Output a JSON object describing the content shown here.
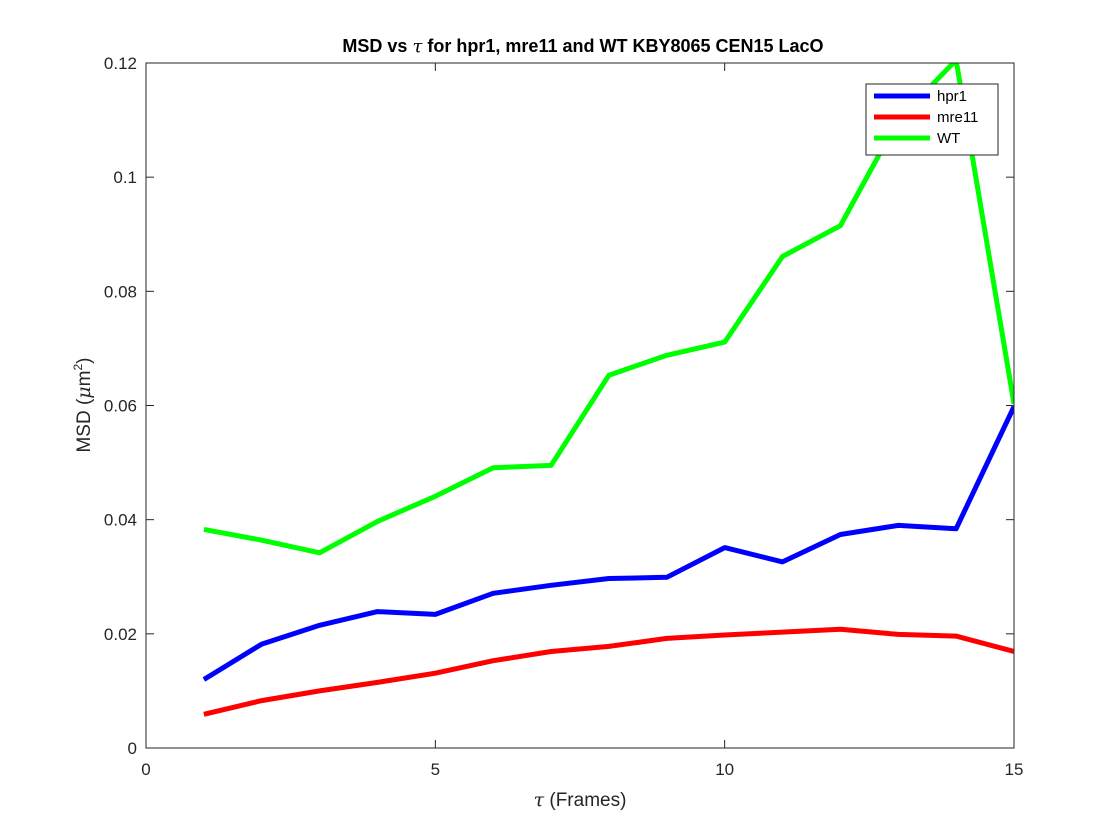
{
  "chart_data": {
    "type": "line",
    "title_parts": {
      "before": "MSD vs ",
      "symbol": "τ",
      "after": " for hpr1, mre11 and WT KBY8065 CEN15 LacO"
    },
    "xlabel_parts": {
      "symbol": "τ",
      "after": " (Frames)"
    },
    "ylabel_parts": {
      "before": "MSD (",
      "symbol": "μ",
      "unit": "m",
      "sup": "2",
      "after": ")"
    },
    "xlim": [
      0,
      15
    ],
    "ylim": [
      0,
      0.12
    ],
    "xticks": [
      0,
      5,
      10,
      15
    ],
    "xtick_labels": [
      "0",
      "5",
      "10",
      "15"
    ],
    "yticks": [
      0,
      0.02,
      0.04,
      0.06,
      0.08,
      0.1,
      0.12
    ],
    "ytick_labels": [
      "0",
      "0.02",
      "0.04",
      "0.06",
      "0.08",
      "0.1",
      "0.12"
    ],
    "grid": false,
    "legend_position": "top-right",
    "x": [
      1,
      2,
      3,
      4,
      5,
      6,
      7,
      8,
      9,
      10,
      11,
      12,
      13,
      14,
      15
    ],
    "series": [
      {
        "name": "hpr1",
        "color": "#0000ff",
        "values": [
          0.012,
          0.0182,
          0.0215,
          0.0239,
          0.0234,
          0.0271,
          0.0285,
          0.0297,
          0.0299,
          0.0351,
          0.0326,
          0.0374,
          0.039,
          0.0384,
          0.0598
        ]
      },
      {
        "name": "mre11",
        "color": "#ff0000",
        "values": [
          0.0059,
          0.0083,
          0.01,
          0.0115,
          0.0131,
          0.0153,
          0.0169,
          0.0178,
          0.0192,
          0.0198,
          0.0203,
          0.0208,
          0.0199,
          0.0196,
          0.0169
        ]
      },
      {
        "name": "WT",
        "color": "#00ff00",
        "values": [
          0.0383,
          0.0364,
          0.0342,
          0.0397,
          0.0441,
          0.0491,
          0.0495,
          0.0653,
          0.0688,
          0.0711,
          0.0861,
          0.0915,
          0.1101,
          0.1205,
          0.0603
        ]
      }
    ]
  }
}
